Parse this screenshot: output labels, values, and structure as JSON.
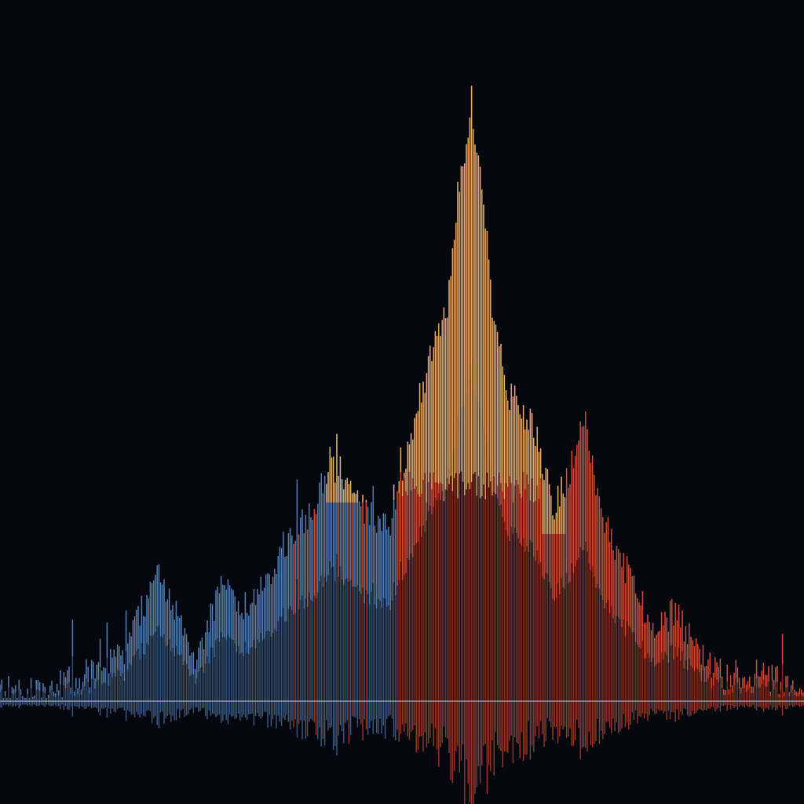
{
  "palette": {
    "background": "#05070e",
    "cool": "#5b88bd",
    "cool_dark": "#3a5778",
    "warm": "#e0553a",
    "warm_dark": "#8e3322",
    "gold": "#e7b468",
    "baseline": "#b9cfe6"
  }
}
